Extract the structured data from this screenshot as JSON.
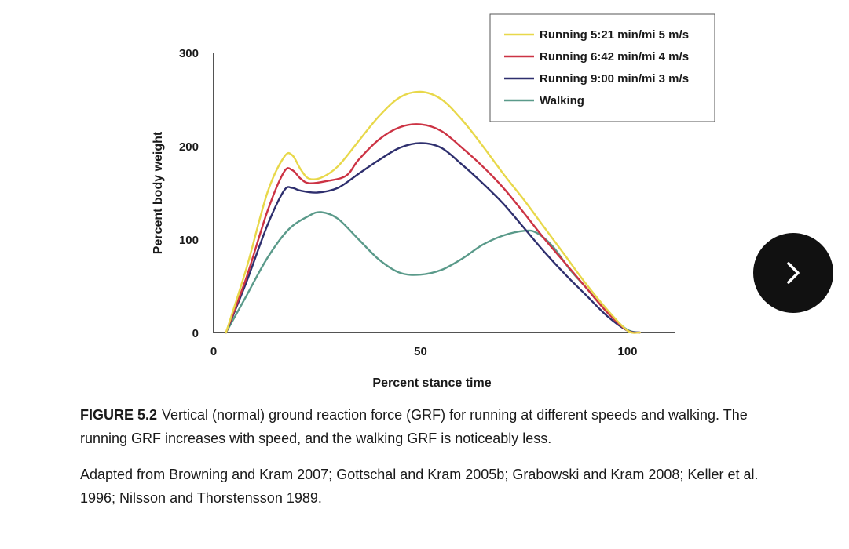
{
  "chart_data": {
    "type": "line",
    "title": "",
    "xlabel": "Percent stance time",
    "ylabel": "Percent body weight",
    "xlim": [
      0,
      110
    ],
    "ylim": [
      0,
      300
    ],
    "x_ticks": [
      "0",
      "50",
      "100"
    ],
    "y_ticks": [
      "0",
      "100",
      "200",
      "300"
    ],
    "legend_position": "top-right",
    "series": [
      {
        "name": "Running 5:21 min/mi 5 m/s",
        "color": "#e8d84a",
        "x": [
          3,
          8,
          13,
          17,
          19,
          21,
          23,
          26,
          30,
          35,
          40,
          45,
          50,
          55,
          60,
          65,
          70,
          75,
          80,
          85,
          90,
          95,
          100,
          103
        ],
        "y": [
          0,
          70,
          150,
          188,
          190,
          175,
          165,
          166,
          178,
          205,
          232,
          252,
          258,
          250,
          228,
          200,
          170,
          142,
          112,
          82,
          52,
          25,
          2,
          0
        ]
      },
      {
        "name": "Running 6:42 min/mi 4 m/s",
        "color": "#cc3344",
        "x": [
          3,
          8,
          13,
          17,
          19,
          21,
          23,
          27,
          32,
          35,
          40,
          45,
          50,
          55,
          60,
          65,
          70,
          75,
          80,
          85,
          90,
          95,
          100,
          103
        ],
        "y": [
          0,
          60,
          130,
          172,
          174,
          165,
          160,
          162,
          168,
          185,
          207,
          220,
          223,
          216,
          198,
          178,
          155,
          128,
          100,
          74,
          48,
          22,
          2,
          0
        ]
      },
      {
        "name": "Running 9:00 min/mi 3 m/s",
        "color": "#2e2f6e",
        "x": [
          3,
          8,
          13,
          17,
          19,
          21,
          25,
          30,
          35,
          40,
          45,
          50,
          55,
          60,
          65,
          70,
          75,
          80,
          85,
          90,
          95,
          100,
          103
        ],
        "y": [
          0,
          55,
          115,
          152,
          155,
          152,
          150,
          155,
          170,
          185,
          198,
          203,
          198,
          180,
          160,
          138,
          112,
          86,
          62,
          40,
          18,
          2,
          0
        ]
      },
      {
        "name": "Walking",
        "color": "#5a9a8a",
        "x": [
          3,
          8,
          13,
          18,
          23,
          26,
          30,
          35,
          40,
          45,
          50,
          55,
          60,
          65,
          70,
          75,
          78,
          82,
          86,
          90,
          95,
          99,
          101,
          103
        ],
        "y": [
          0,
          40,
          80,
          110,
          125,
          129,
          122,
          100,
          78,
          64,
          62,
          67,
          79,
          94,
          104,
          109,
          107,
          92,
          68,
          48,
          22,
          6,
          1,
          0
        ]
      }
    ]
  },
  "caption": {
    "label": "FIGURE 5.2",
    "text": "Vertical (normal) ground reaction force (GRF) for running at different speeds and walking. The running GRF increases with speed, and the walking GRF is noticeably less."
  },
  "source": "Adapted from Browning and Kram 2007; Gottschal and Kram 2005b; Grabowski and Kram 2008; Keller et al. 1996; Nilsson and Thorstensson 1989.",
  "navigation": {
    "next_icon": "chevron-right-icon"
  }
}
